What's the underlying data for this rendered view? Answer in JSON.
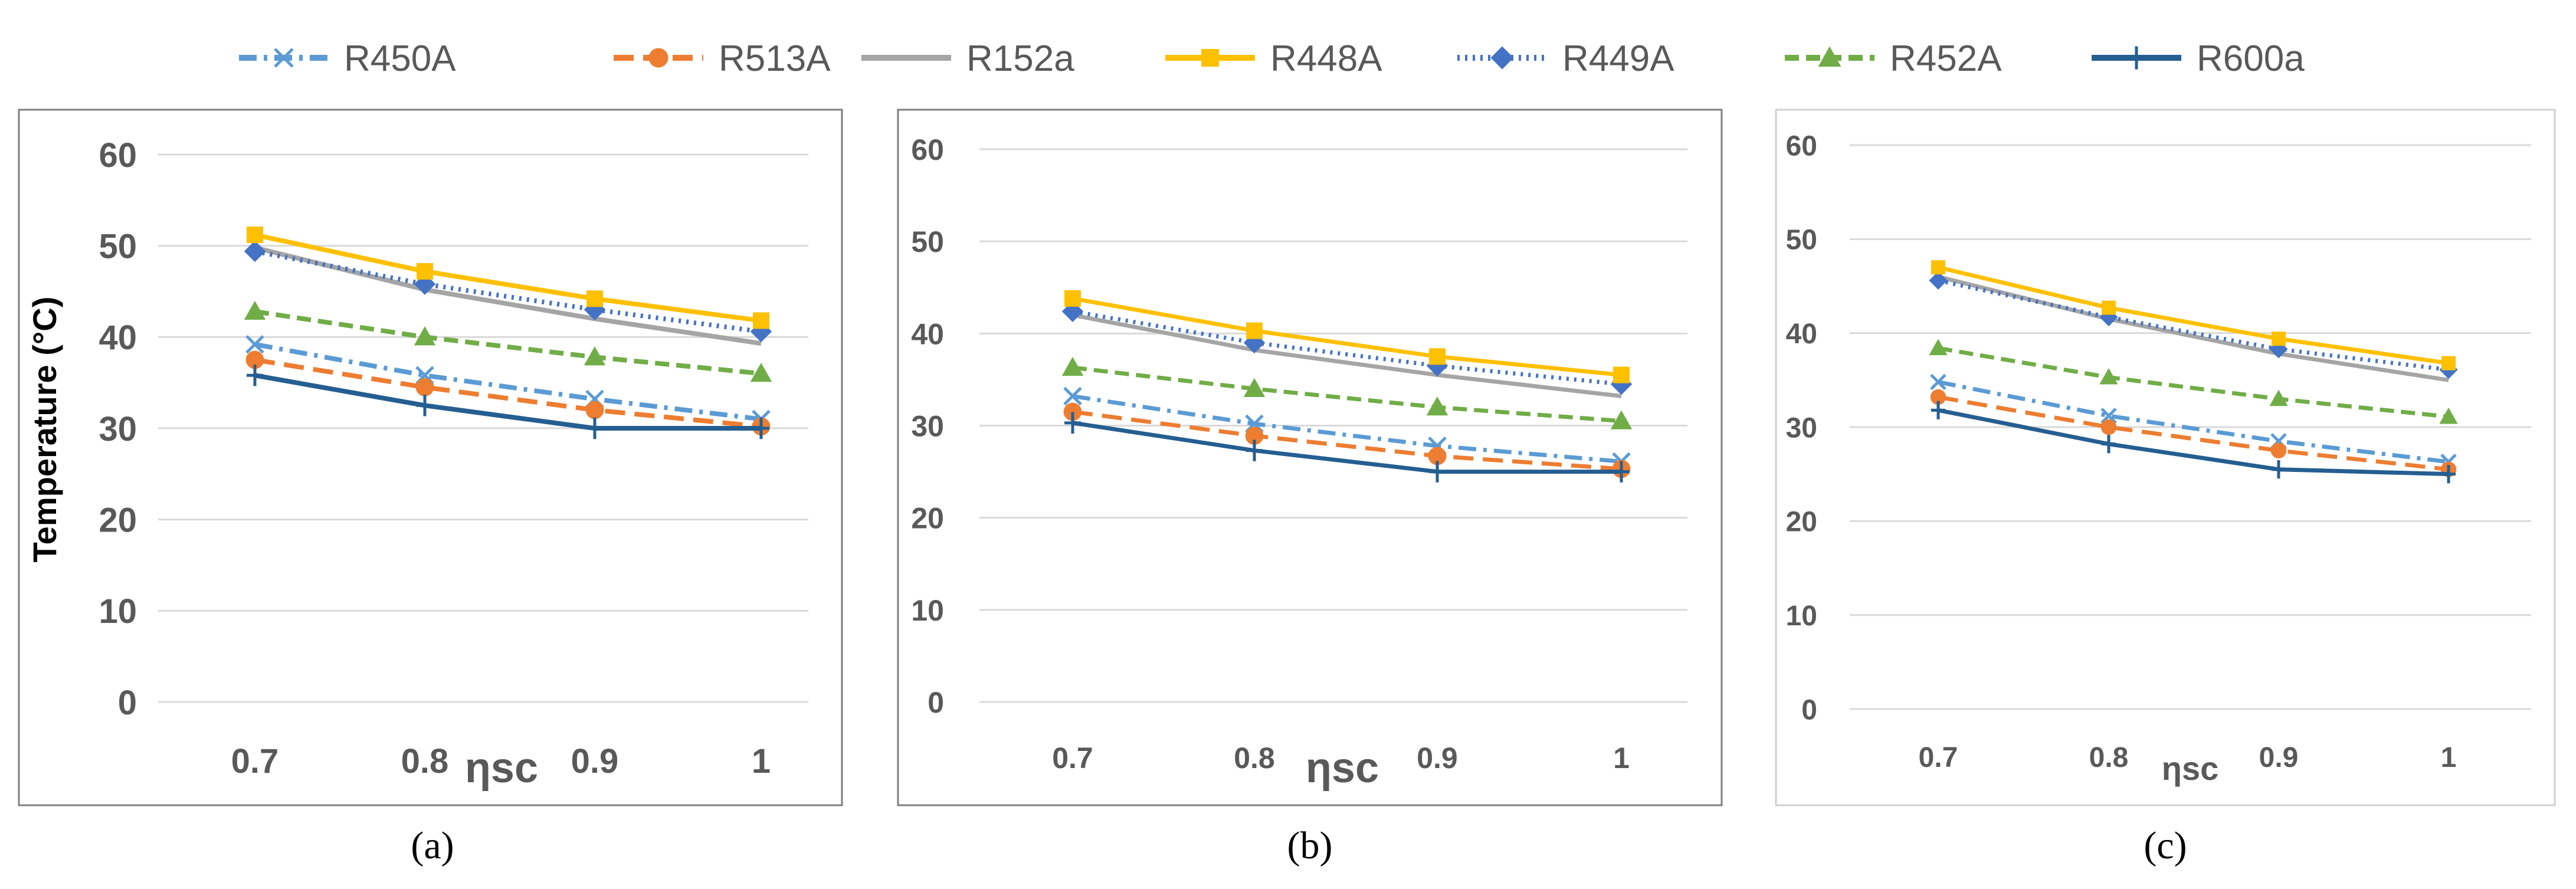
{
  "legend": [
    {
      "name": "R450A",
      "color": "#5B9BD5",
      "dash": "30 12 6 12",
      "marker": "x"
    },
    {
      "name": "R513A",
      "color": "#ED7D31",
      "dash": "34 16",
      "marker": "circle"
    },
    {
      "name": "R152a",
      "color": "#A5A5A5",
      "dash": "",
      "marker": "none"
    },
    {
      "name": "R448A",
      "color": "#FFC000",
      "dash": "",
      "marker": "square"
    },
    {
      "name": "R449A",
      "color": "#4472C4",
      "dash": "4 9",
      "marker": "diamond"
    },
    {
      "name": "R452A",
      "color": "#70AD47",
      "dash": "24 12",
      "marker": "triangle"
    },
    {
      "name": "R600a",
      "color": "#255E91",
      "dash": "",
      "marker": "plus"
    }
  ],
  "chart_data": [
    {
      "type": "line",
      "label": "(a)",
      "xlabel": "ηsc",
      "ylabel": "Temperature (°C)",
      "categories": [
        "0.7",
        "0.8",
        "0.9",
        "1"
      ],
      "ylim": [
        0,
        60
      ],
      "yticks": [
        "0",
        "10",
        "20",
        "30",
        "40",
        "50",
        "60"
      ],
      "series": [
        {
          "name": "R450A",
          "values": [
            39.2,
            35.8,
            33.2,
            31.0
          ]
        },
        {
          "name": "R513A",
          "values": [
            37.5,
            34.5,
            32.0,
            30.2
          ]
        },
        {
          "name": "R152a",
          "values": [
            49.8,
            45.2,
            42.0,
            39.3
          ]
        },
        {
          "name": "R448A",
          "values": [
            51.2,
            47.2,
            44.2,
            41.8
          ]
        },
        {
          "name": "R449A",
          "values": [
            49.4,
            45.8,
            43.0,
            40.6
          ]
        },
        {
          "name": "R452A",
          "values": [
            42.8,
            40.0,
            37.8,
            36.0
          ]
        },
        {
          "name": "R600a",
          "values": [
            35.8,
            32.5,
            30.0,
            30.0
          ]
        }
      ]
    },
    {
      "type": "line",
      "label": "(b)",
      "xlabel": "ηsc",
      "ylabel": "",
      "categories": [
        "0.7",
        "0.8",
        "0.9",
        "1"
      ],
      "ylim": [
        0,
        60
      ],
      "yticks": [
        "0",
        "10",
        "20",
        "30",
        "40",
        "50",
        "60"
      ],
      "series": [
        {
          "name": "R450A",
          "values": [
            33.2,
            30.2,
            27.8,
            26.1
          ]
        },
        {
          "name": "R513A",
          "values": [
            31.5,
            28.9,
            26.7,
            25.3
          ]
        },
        {
          "name": "R152a",
          "values": [
            42.0,
            38.2,
            35.5,
            33.2
          ]
        },
        {
          "name": "R448A",
          "values": [
            43.8,
            40.3,
            37.5,
            35.5
          ]
        },
        {
          "name": "R449A",
          "values": [
            42.4,
            39.0,
            36.5,
            34.5
          ]
        },
        {
          "name": "R452A",
          "values": [
            36.3,
            34.0,
            32.0,
            30.5
          ]
        },
        {
          "name": "R600a",
          "values": [
            30.3,
            27.3,
            25.0,
            25.0
          ]
        }
      ]
    },
    {
      "type": "line",
      "label": "(c)",
      "xlabel": "ηsc",
      "ylabel": "",
      "categories": [
        "0.7",
        "0.8",
        "0.9",
        "1"
      ],
      "ylim": [
        0,
        60
      ],
      "yticks": [
        "0",
        "10",
        "20",
        "30",
        "40",
        "50",
        "60"
      ],
      "series": [
        {
          "name": "R450A",
          "values": [
            34.8,
            31.2,
            28.5,
            26.3
          ]
        },
        {
          "name": "R513A",
          "values": [
            33.2,
            30.0,
            27.5,
            25.5
          ]
        },
        {
          "name": "R152a",
          "values": [
            46.0,
            41.5,
            37.8,
            35.0
          ]
        },
        {
          "name": "R448A",
          "values": [
            47.0,
            42.7,
            39.4,
            36.8
          ]
        },
        {
          "name": "R449A",
          "values": [
            45.6,
            41.7,
            38.3,
            36.1
          ]
        },
        {
          "name": "R452A",
          "values": [
            38.4,
            35.3,
            33.0,
            31.1
          ]
        },
        {
          "name": "R600a",
          "values": [
            31.8,
            28.2,
            25.5,
            25.0
          ]
        }
      ]
    }
  ]
}
